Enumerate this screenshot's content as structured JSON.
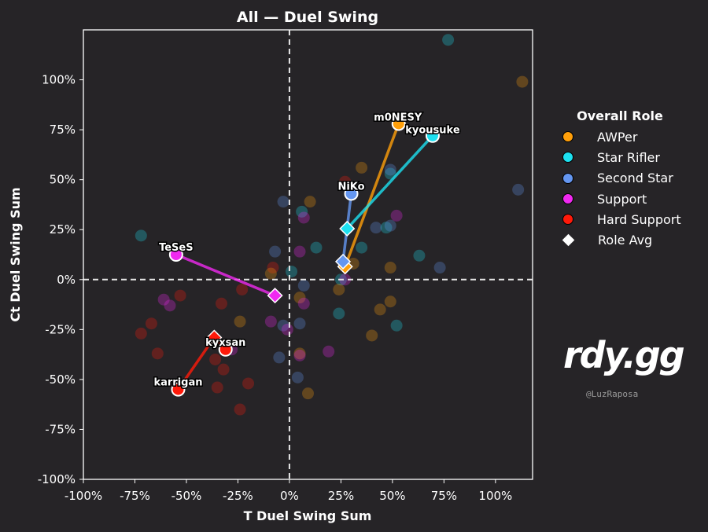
{
  "chart_data": {
    "type": "scatter",
    "title": "All — Duel Swing",
    "xlabel": "T Duel Swing Sum",
    "ylabel": "Ct Duel Swing Sum",
    "xlim": [
      -100,
      118
    ],
    "ylim": [
      -100,
      125
    ],
    "xticks": [
      -100,
      -75,
      -50,
      -25,
      0,
      25,
      50,
      75,
      100
    ],
    "yticks": [
      -100,
      -75,
      -50,
      -25,
      0,
      25,
      50,
      75,
      100
    ],
    "xtick_labels": [
      "-100%",
      "-75%",
      "-50%",
      "-25%",
      "0%",
      "25%",
      "50%",
      "75%",
      "100%"
    ],
    "ytick_labels": [
      "-100%",
      "-75%",
      "-50%",
      "-25%",
      "0%",
      "25%",
      "50%",
      "75%",
      "100%"
    ],
    "grid": false,
    "reference_lines": {
      "x": 0,
      "y": 0,
      "style": "dashed"
    },
    "legend": {
      "title": "Overall Role",
      "placement": "right",
      "entries": [
        {
          "label": "AWPer",
          "color": "#ff9f0a",
          "marker": "circle"
        },
        {
          "label": "Star Rifler",
          "color": "#1de0f0",
          "marker": "circle"
        },
        {
          "label": "Second Star",
          "color": "#6496f0",
          "marker": "circle"
        },
        {
          "label": "Support",
          "color": "#f029f0",
          "marker": "circle"
        },
        {
          "label": "Hard Support",
          "color": "#ff1a0a",
          "marker": "circle"
        },
        {
          "label": "Role Avg",
          "color": "#ffffff",
          "marker": "diamond"
        }
      ]
    },
    "role_colors": {
      "AWPer": "#ff9f0a",
      "Star Rifler": "#1de0f0",
      "Second Star": "#6496f0",
      "Support": "#f029f0",
      "Hard Support": "#ff1a0a"
    },
    "highlighted_players": [
      {
        "name": "m0NESY",
        "role": "AWPer",
        "x": 53,
        "y": 78
      },
      {
        "name": "kyousuke",
        "role": "Star Rifler",
        "x": 69.5,
        "y": 72
      },
      {
        "name": "NiKo",
        "role": "Second Star",
        "x": 30,
        "y": 43
      },
      {
        "name": "TeSeS",
        "role": "Support",
        "x": -55,
        "y": 12.5
      },
      {
        "name": "kyxsan",
        "role": "Hard Support",
        "x": -31,
        "y": -35
      },
      {
        "name": "karrigan",
        "role": "Hard Support",
        "x": -54,
        "y": -55
      }
    ],
    "role_averages": [
      {
        "role": "AWPer",
        "x": 27,
        "y": 6.5
      },
      {
        "role": "Star Rifler",
        "x": 28,
        "y": 25.5
      },
      {
        "role": "Second Star",
        "x": 26,
        "y": 9
      },
      {
        "role": "Support",
        "x": -7,
        "y": -8
      },
      {
        "role": "Hard Support",
        "x": -36.5,
        "y": -29
      }
    ],
    "background_points": [
      {
        "role": "Star Rifler",
        "x": 77,
        "y": 120
      },
      {
        "role": "AWPer",
        "x": 113,
        "y": 99
      },
      {
        "role": "AWPer",
        "x": 35,
        "y": 56
      },
      {
        "role": "Hard Support",
        "x": 27,
        "y": 49
      },
      {
        "role": "Star Rifler",
        "x": 49,
        "y": 53
      },
      {
        "role": "Second Star",
        "x": 49,
        "y": 55
      },
      {
        "role": "Second Star",
        "x": 111,
        "y": 45
      },
      {
        "role": "AWPer",
        "x": 10,
        "y": 39
      },
      {
        "role": "Second Star",
        "x": -3,
        "y": 39
      },
      {
        "role": "Star Rifler",
        "x": 6,
        "y": 34
      },
      {
        "role": "Support",
        "x": 7,
        "y": 31
      },
      {
        "role": "Support",
        "x": 52,
        "y": 32
      },
      {
        "role": "Second Star",
        "x": 42,
        "y": 26
      },
      {
        "role": "Star Rifler",
        "x": 47,
        "y": 26
      },
      {
        "role": "Second Star",
        "x": 49,
        "y": 27
      },
      {
        "role": "Star Rifler",
        "x": -72,
        "y": 22
      },
      {
        "role": "Star Rifler",
        "x": 13,
        "y": 16
      },
      {
        "role": "Second Star",
        "x": -7,
        "y": 14
      },
      {
        "role": "Support",
        "x": 5,
        "y": 14
      },
      {
        "role": "Star Rifler",
        "x": 35,
        "y": 16
      },
      {
        "role": "Star Rifler",
        "x": 63,
        "y": 12
      },
      {
        "role": "Second Star",
        "x": 73,
        "y": 6
      },
      {
        "role": "AWPer",
        "x": 31,
        "y": 8
      },
      {
        "role": "AWPer",
        "x": 49,
        "y": 6
      },
      {
        "role": "Hard Support",
        "x": -8,
        "y": 6
      },
      {
        "role": "AWPer",
        "x": -9,
        "y": 3
      },
      {
        "role": "Star Rifler",
        "x": 1,
        "y": 4
      },
      {
        "role": "Star Rifler",
        "x": 25,
        "y": 0
      },
      {
        "role": "Support",
        "x": 27,
        "y": 0
      },
      {
        "role": "Second Star",
        "x": 7,
        "y": -3
      },
      {
        "role": "AWPer",
        "x": 24,
        "y": -5
      },
      {
        "role": "Hard Support",
        "x": -23,
        "y": -5
      },
      {
        "role": "Hard Support",
        "x": -53,
        "y": -8
      },
      {
        "role": "Support",
        "x": -61,
        "y": -10
      },
      {
        "role": "Support",
        "x": -58,
        "y": -13
      },
      {
        "role": "AWPer",
        "x": 5,
        "y": -9
      },
      {
        "role": "Support",
        "x": 7,
        "y": -12
      },
      {
        "role": "Hard Support",
        "x": -33,
        "y": -12
      },
      {
        "role": "AWPer",
        "x": 49,
        "y": -11
      },
      {
        "role": "AWPer",
        "x": 44,
        "y": -15
      },
      {
        "role": "Star Rifler",
        "x": 24,
        "y": -17
      },
      {
        "role": "Hard Support",
        "x": -67,
        "y": -22
      },
      {
        "role": "Hard Support",
        "x": -72,
        "y": -27
      },
      {
        "role": "AWPer",
        "x": -24,
        "y": -21
      },
      {
        "role": "Support",
        "x": -9,
        "y": -21
      },
      {
        "role": "Second Star",
        "x": -3,
        "y": -23
      },
      {
        "role": "Second Star",
        "x": 5,
        "y": -22
      },
      {
        "role": "Support",
        "x": -1,
        "y": -25
      },
      {
        "role": "Star Rifler",
        "x": 52,
        "y": -23
      },
      {
        "role": "AWPer",
        "x": 40,
        "y": -28
      },
      {
        "role": "Support",
        "x": -28,
        "y": -35
      },
      {
        "role": "Hard Support",
        "x": -64,
        "y": -37
      },
      {
        "role": "Support",
        "x": 19,
        "y": -36
      },
      {
        "role": "Second Star",
        "x": -5,
        "y": -39
      },
      {
        "role": "AWPer",
        "x": 5,
        "y": -37
      },
      {
        "role": "Support",
        "x": 5,
        "y": -38
      },
      {
        "role": "Hard Support",
        "x": -36,
        "y": -40
      },
      {
        "role": "Hard Support",
        "x": -32,
        "y": -45
      },
      {
        "role": "Second Star",
        "x": 4,
        "y": -49
      },
      {
        "role": "Hard Support",
        "x": -20,
        "y": -52
      },
      {
        "role": "Hard Support",
        "x": -35,
        "y": -54
      },
      {
        "role": "AWPer",
        "x": 9,
        "y": -57
      },
      {
        "role": "Hard Support",
        "x": -24,
        "y": -65
      }
    ]
  },
  "branding": {
    "logo": "rdy.gg",
    "handle": "@LuzRaposa"
  }
}
